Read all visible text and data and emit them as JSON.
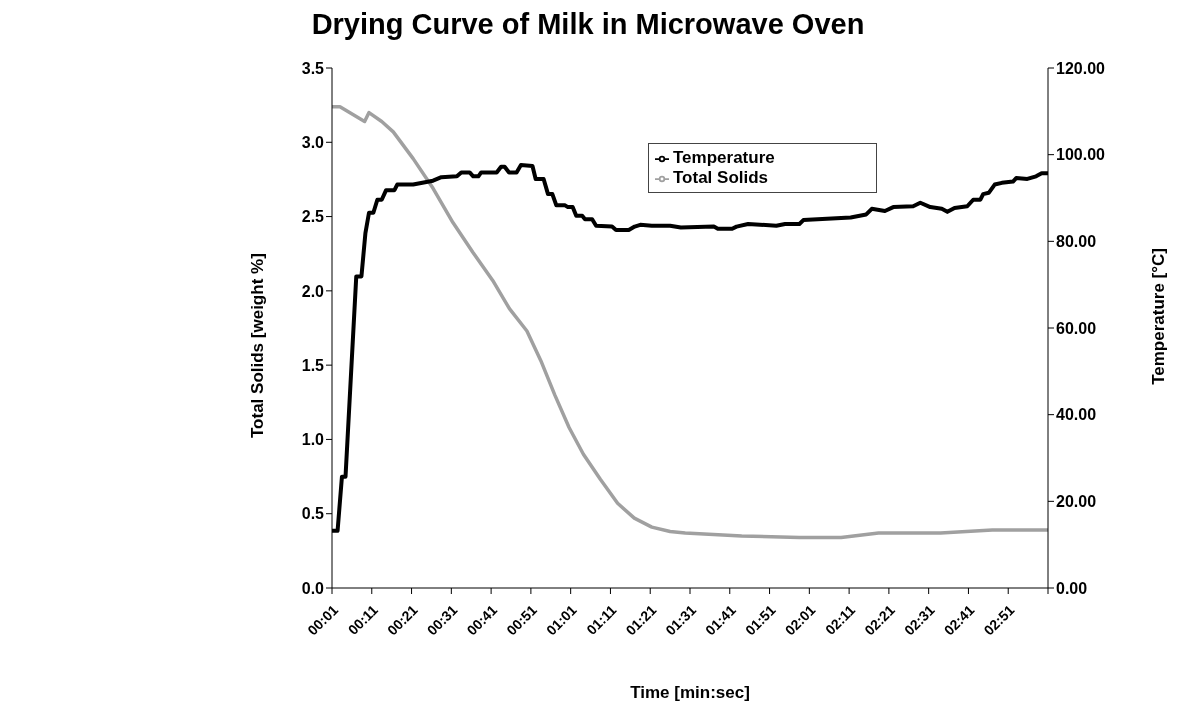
{
  "chart_data": {
    "type": "line",
    "title": "Drying Curve of Milk in Microwave Oven",
    "xlabel": "Time [min:sec]",
    "ylabel": "Total Solids [weight %]",
    "y2label": "Temperature [°C]",
    "xlim": [
      1,
      181
    ],
    "xticks": [
      {
        "value": 1,
        "label": "00:01"
      },
      {
        "value": 11,
        "label": "00:11"
      },
      {
        "value": 21,
        "label": "00:21"
      },
      {
        "value": 31,
        "label": "00:31"
      },
      {
        "value": 41,
        "label": "00:41"
      },
      {
        "value": 51,
        "label": "00:51"
      },
      {
        "value": 61,
        "label": "01:01"
      },
      {
        "value": 71,
        "label": "01:11"
      },
      {
        "value": 81,
        "label": "01:21"
      },
      {
        "value": 91,
        "label": "01:31"
      },
      {
        "value": 101,
        "label": "01:41"
      },
      {
        "value": 111,
        "label": "01:51"
      },
      {
        "value": 121,
        "label": "02:01"
      },
      {
        "value": 131,
        "label": "02:11"
      },
      {
        "value": 141,
        "label": "02:21"
      },
      {
        "value": 151,
        "label": "02:31"
      },
      {
        "value": 161,
        "label": "02:41"
      },
      {
        "value": 171,
        "label": "02:51"
      },
      {
        "value": 181,
        "label": null
      }
    ],
    "ylim": [
      0,
      3.5
    ],
    "yticks": [
      {
        "value": 0,
        "label": "0.0"
      },
      {
        "value": 0.5,
        "label": "0.5"
      },
      {
        "value": 1,
        "label": "1.0"
      },
      {
        "value": 1.5,
        "label": "1.5"
      },
      {
        "value": 2,
        "label": "2.0"
      },
      {
        "value": 2.5,
        "label": "2.5"
      },
      {
        "value": 3,
        "label": "3.0"
      },
      {
        "value": 3.5,
        "label": "3.5"
      }
    ],
    "y2lim": [
      0,
      120
    ],
    "y2ticks": [
      {
        "value": 0,
        "label": "0.00"
      },
      {
        "value": 20,
        "label": "20.00"
      },
      {
        "value": 40,
        "label": "40.00"
      },
      {
        "value": 60,
        "label": "60.00"
      },
      {
        "value": 80,
        "label": "80.00"
      },
      {
        "value": 100,
        "label": "100.00"
      },
      {
        "value": 120,
        "label": "120.00"
      }
    ],
    "legend": "top right",
    "grid": false,
    "marker": "none",
    "series": [
      {
        "name": "Total Solids",
        "color": "#a0a0a0",
        "x": [
          1,
          3,
          9.2,
          10.3,
          13.5,
          16.4,
          21.4,
          26.4,
          31.4,
          36.4,
          41.4,
          45.6,
          50,
          53.5,
          57,
          60.6,
          64.2,
          68.5,
          72.8,
          77,
          81.4,
          86,
          89.8,
          104,
          118.5,
          129,
          138.4,
          154,
          167,
          181
        ],
        "values": [
          3.24,
          3.24,
          3.14,
          3.2,
          3.14,
          3.07,
          2.89,
          2.69,
          2.46,
          2.26,
          2.07,
          1.88,
          1.73,
          1.53,
          1.3,
          1.08,
          0.9,
          0.73,
          0.57,
          0.47,
          0.41,
          0.38,
          0.37,
          0.35,
          0.34,
          0.34,
          0.37,
          0.37,
          0.39,
          0.39
        ]
      },
      {
        "name": "Temperature",
        "color": "#000000",
        "axis": "y2",
        "x": [
          1,
          2.4,
          3.5,
          4.4,
          7.1,
          8.4,
          9.4,
          10.3,
          11.4,
          12.4,
          13.5,
          14.6,
          16.7,
          17.4,
          21.4,
          26.4,
          28.5,
          32.4,
          33.5,
          35.6,
          36.5,
          37.8,
          38.5,
          42.4,
          43.5,
          44.4,
          45.5,
          47.4,
          48.5,
          51.4,
          52.2,
          54.2,
          55.3,
          56.4,
          57.4,
          59.6,
          60.3,
          61.5,
          62.4,
          63.9,
          64.6,
          66.4,
          67.4,
          71.4,
          72.4,
          75.6,
          77.1,
          78.5,
          81.4,
          86,
          88.7,
          97,
          98,
          101.6,
          102.7,
          105.6,
          112.7,
          114.9,
          118.5,
          119.5,
          131.4,
          135.3,
          136.7,
          140,
          142.1,
          147.1,
          148.9,
          151.4,
          154.3,
          155.7,
          157.5,
          160.7,
          162.2,
          164,
          164.7,
          166.1,
          167.6,
          169.4,
          172.2,
          173,
          175.8,
          178,
          179.4,
          181
        ],
        "values": [
          13.2,
          13.2,
          25.7,
          25.7,
          71.9,
          71.9,
          81.9,
          86.6,
          86.6,
          89.6,
          89.6,
          91.8,
          91.8,
          93.1,
          93.1,
          94,
          94.8,
          95,
          95.9,
          95.9,
          95,
          95,
          95.9,
          95.9,
          97.2,
          97.2,
          95.9,
          95.9,
          97.6,
          97.4,
          94.4,
          94.4,
          90.9,
          90.9,
          88.3,
          88.3,
          87.9,
          87.9,
          85.9,
          85.9,
          85.1,
          85.1,
          83.6,
          83.4,
          82.6,
          82.6,
          83.4,
          83.8,
          83.6,
          83.6,
          83.2,
          83.4,
          82.9,
          82.9,
          83.4,
          84,
          83.6,
          84,
          84,
          84.9,
          85.5,
          86.2,
          87.5,
          87,
          87.9,
          88.1,
          88.9,
          87.9,
          87.5,
          86.8,
          87.7,
          88.1,
          89.6,
          89.6,
          90.9,
          91.2,
          93.1,
          93.5,
          93.8,
          94.6,
          94.4,
          95,
          95.7,
          95.7
        ]
      }
    ]
  }
}
